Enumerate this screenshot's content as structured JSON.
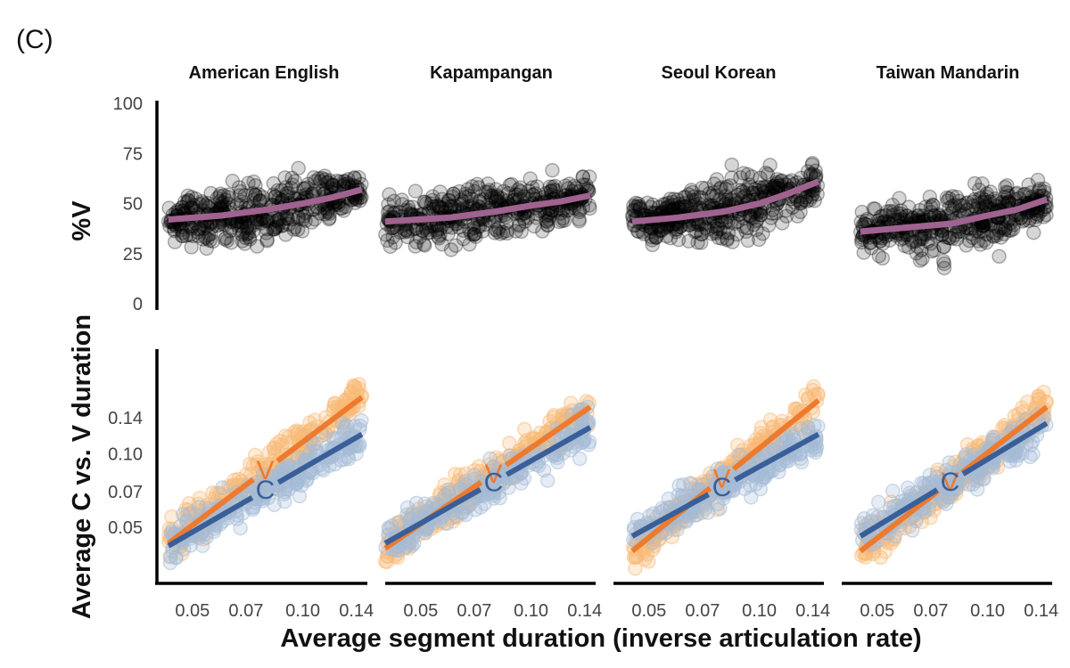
{
  "figure": {
    "panel_label": "(C)",
    "facets": [
      "American English",
      "Kapampangan",
      "Seoul Korean",
      "Taiwan Mandarin"
    ],
    "x_axis_title": "Average segment duration (inverse articulation rate)",
    "top_y_title": "%V",
    "bottom_y_title": "Average C vs. V duration"
  },
  "colors": {
    "points_top": "#000000",
    "fit_top": "#a0628f",
    "V": "#ee7a2d",
    "C": "#3a5f98",
    "V_points": "#f9b978",
    "C_points": "#a4bcd6",
    "axis": "#000000"
  },
  "chart_data": [
    {
      "type": "scatter",
      "name": "%V",
      "xlabel": "Average segment duration (inverse articulation rate)",
      "ylabel": "%V",
      "x_scale": "log",
      "xlim": [
        0.04,
        0.15
      ],
      "ylim": [
        0,
        100
      ],
      "x_ticks": [
        "0.05",
        "0.07",
        "0.10",
        "0.14"
      ],
      "y_ticks": [
        "0",
        "25",
        "50",
        "75",
        "100"
      ],
      "facets": [
        {
          "title": "American English",
          "x_range": [
            0.043,
            0.145
          ],
          "fit": {
            "x": [
              0.043,
              0.06,
              0.08,
              0.1,
              0.12,
              0.145
            ],
            "y": [
              42,
              44,
              47,
              50,
              53,
              57
            ]
          }
        },
        {
          "title": "Kapampangan",
          "x_range": [
            0.04,
            0.145
          ],
          "fit": {
            "x": [
              0.04,
              0.06,
              0.08,
              0.1,
              0.12,
              0.145
            ],
            "y": [
              41,
              43,
              46,
              49,
              51,
              54
            ]
          }
        },
        {
          "title": "Seoul Korean",
          "x_range": [
            0.045,
            0.145
          ],
          "fit": {
            "x": [
              0.045,
              0.06,
              0.08,
              0.1,
              0.12,
              0.145
            ],
            "y": [
              41,
              43,
              46,
              50,
              55,
              61
            ]
          }
        },
        {
          "title": "Taiwan Mandarin",
          "x_range": [
            0.045,
            0.145
          ],
          "fit": {
            "x": [
              0.045,
              0.06,
              0.08,
              0.1,
              0.12,
              0.145
            ],
            "y": [
              36,
              38,
              40,
              44,
              47,
              52
            ]
          }
        }
      ]
    },
    {
      "type": "scatter",
      "name": "Average C vs. V duration",
      "xlabel": "Average segment duration (inverse articulation rate)",
      "ylabel": "Average C vs. V duration",
      "x_scale": "log",
      "y_scale": "log",
      "xlim": [
        0.04,
        0.15
      ],
      "ylim": [
        0.03,
        0.25
      ],
      "x_ticks": [
        "0.05",
        "0.07",
        "0.10",
        "0.14"
      ],
      "y_ticks": [
        "0.05",
        "0.07",
        "0.10",
        "0.14"
      ],
      "facets": [
        {
          "title": "American English",
          "series": [
            {
              "name": "V",
              "fit": {
                "x": [
                  0.043,
                  0.145
                ],
                "y": [
                  0.043,
                  0.17
                ]
              }
            },
            {
              "name": "C",
              "fit": {
                "x": [
                  0.043,
                  0.145
                ],
                "y": [
                  0.042,
                  0.12
                ]
              }
            }
          ]
        },
        {
          "title": "Kapampangan",
          "series": [
            {
              "name": "V",
              "fit": {
                "x": [
                  0.04,
                  0.145
                ],
                "y": [
                  0.041,
                  0.155
                ]
              }
            },
            {
              "name": "C",
              "fit": {
                "x": [
                  0.04,
                  0.145
                ],
                "y": [
                  0.043,
                  0.128
                ]
              }
            }
          ]
        },
        {
          "title": "Seoul Korean",
          "series": [
            {
              "name": "V",
              "fit": {
                "x": [
                  0.045,
                  0.145
                ],
                "y": [
                  0.04,
                  0.165
                ]
              }
            },
            {
              "name": "C",
              "fit": {
                "x": [
                  0.045,
                  0.145
                ],
                "y": [
                  0.046,
                  0.12
                ]
              }
            }
          ]
        },
        {
          "title": "Taiwan Mandarin",
          "series": [
            {
              "name": "V",
              "fit": {
                "x": [
                  0.045,
                  0.145
                ],
                "y": [
                  0.04,
                  0.155
                ]
              }
            },
            {
              "name": "C",
              "fit": {
                "x": [
                  0.045,
                  0.145
                ],
                "y": [
                  0.046,
                  0.133
                ]
              }
            }
          ]
        }
      ]
    }
  ]
}
